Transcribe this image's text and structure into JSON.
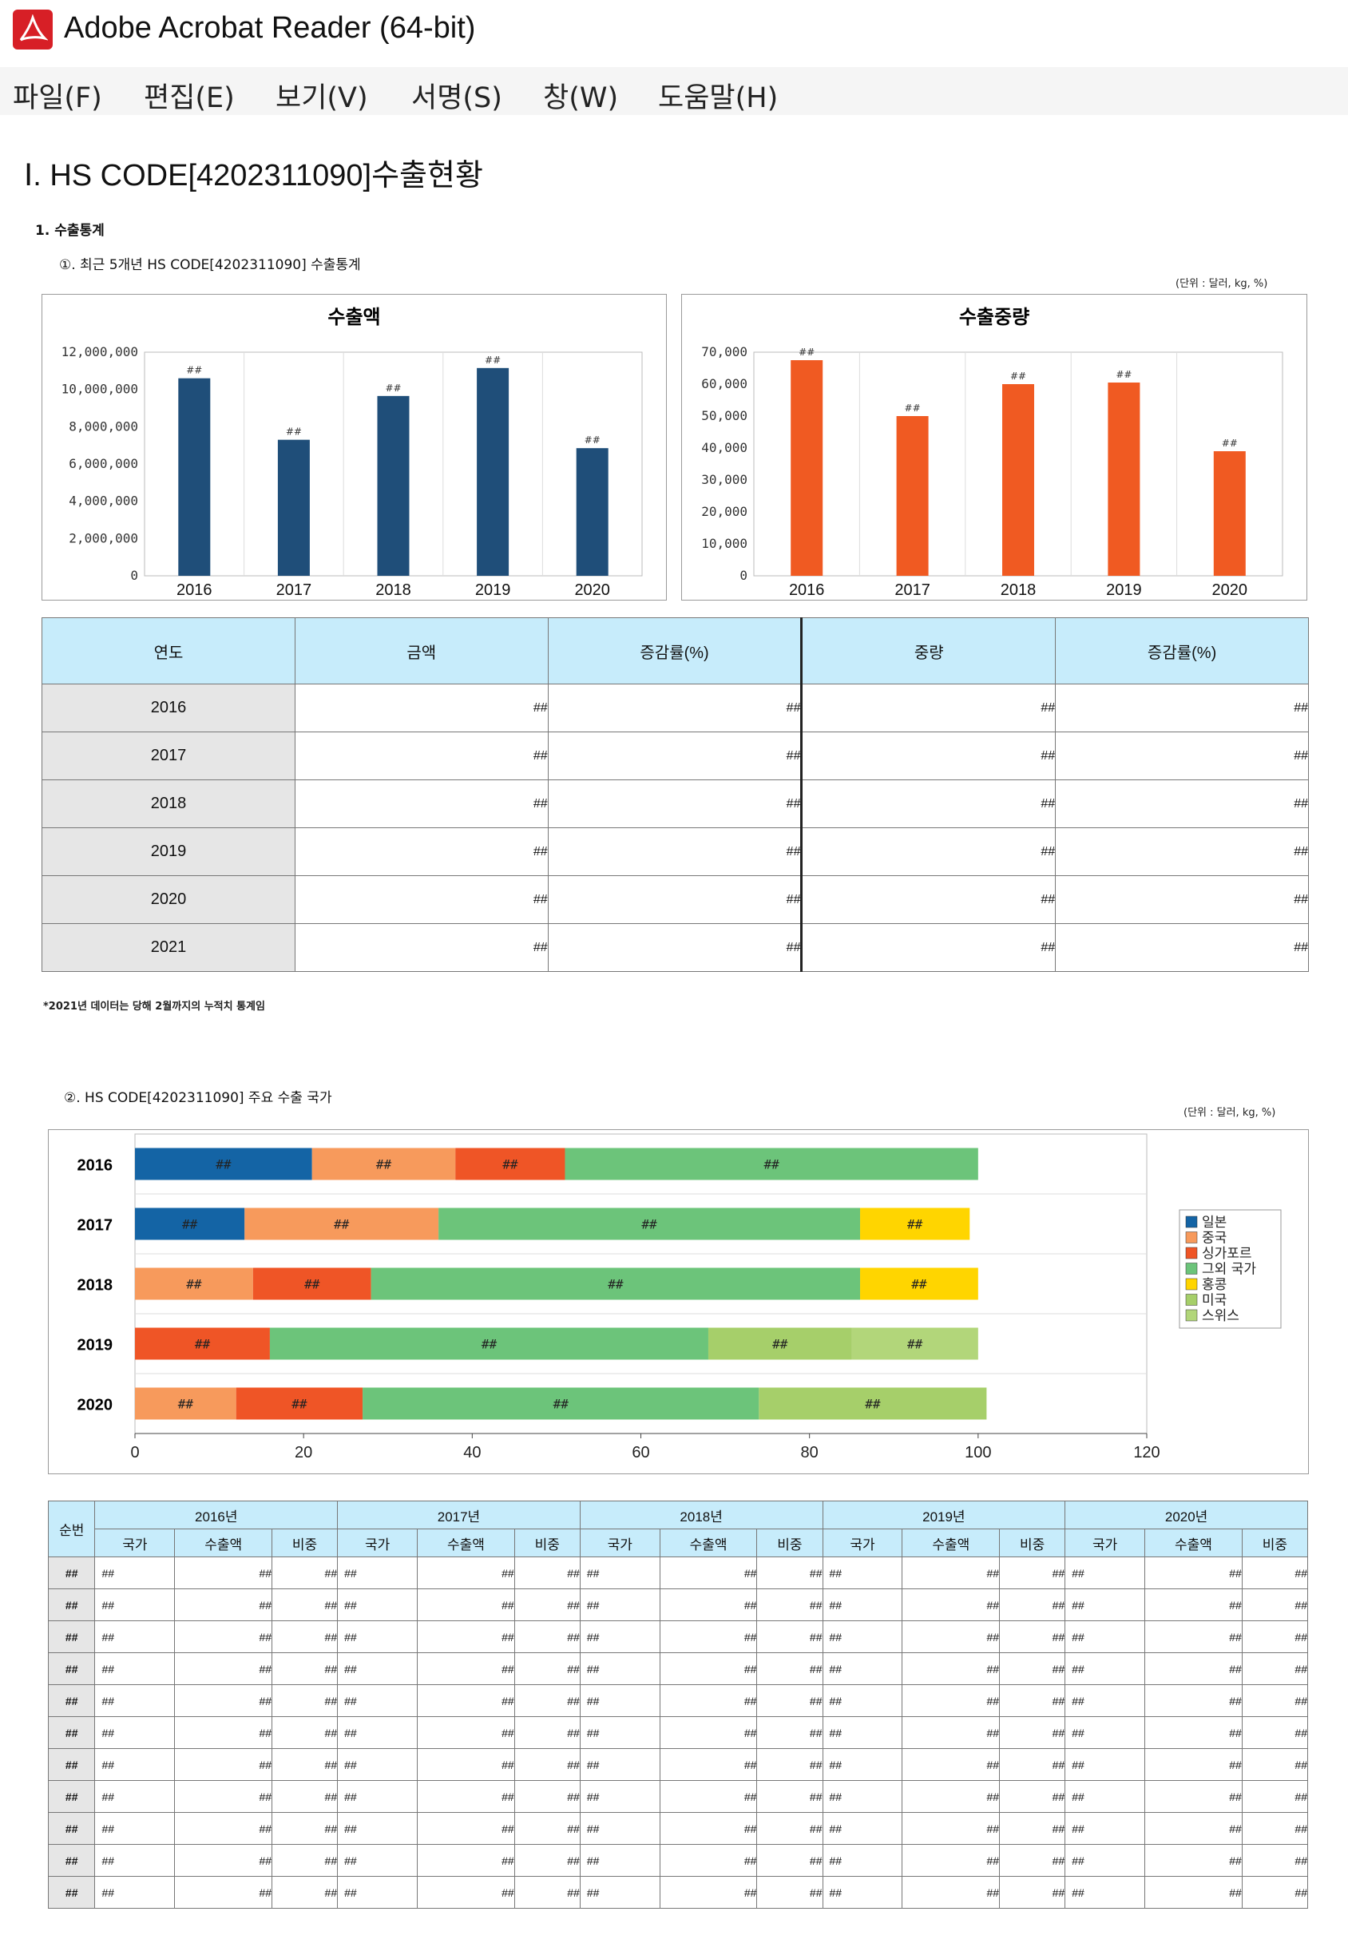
{
  "window": {
    "title": "Adobe Acrobat Reader (64-bit)"
  },
  "menu": [
    "파일(F)",
    "편집(E)",
    "보기(V)",
    "서명(S)",
    "창(W)",
    "도움말(H)"
  ],
  "doc": {
    "heading": "Ⅰ. HS CODE[4202311090]수출현황",
    "section1": "1. 수출통계",
    "sub1": "①. 최근 5개년 HS CODE[4202311090] 수출통계",
    "unit": "(단위 : 달러, kg, %)",
    "note": "*2021년 데이터는 당해 2월까지의 누적치 통계임",
    "sub2": "②. HS CODE[4202311090] 주요 수출 국가",
    "table1": {
      "headers": [
        "연도",
        "금액",
        "증감률(%)",
        "중량",
        "증감률(%)"
      ],
      "rows": [
        {
          "year": "2016",
          "v": [
            "##",
            "##",
            "##",
            "##"
          ]
        },
        {
          "year": "2017",
          "v": [
            "##",
            "##",
            "##",
            "##"
          ]
        },
        {
          "year": "2018",
          "v": [
            "##",
            "##",
            "##",
            "##"
          ]
        },
        {
          "year": "2019",
          "v": [
            "##",
            "##",
            "##",
            "##"
          ]
        },
        {
          "year": "2020",
          "v": [
            "##",
            "##",
            "##",
            "##"
          ]
        },
        {
          "year": "2021",
          "v": [
            "##",
            "##",
            "##",
            "##"
          ]
        }
      ]
    },
    "table2": {
      "rank_header": "순번",
      "years": [
        "2016년",
        "2017년",
        "2018년",
        "2019년",
        "2020년"
      ],
      "subheaders": [
        "국가",
        "수출액",
        "비중"
      ],
      "cell": "##",
      "row_count": 11
    }
  },
  "chart_data": [
    {
      "type": "bar",
      "title": "수출액",
      "categories": [
        "2016",
        "2017",
        "2018",
        "2019",
        "2020"
      ],
      "values": [
        10600000,
        7300000,
        9650000,
        11150000,
        6850000
      ],
      "data_labels": [
        "##",
        "##",
        "##",
        "##",
        "##"
      ],
      "ylim": [
        0,
        12000000
      ],
      "yticks": [
        "12,000,000",
        "10,000,000",
        "8,000,000",
        "6,000,000",
        "4,000,000",
        "2,000,000",
        "0"
      ],
      "color": "#1f4e79",
      "grid": true
    },
    {
      "type": "bar",
      "title": "수출중량",
      "categories": [
        "2016",
        "2017",
        "2018",
        "2019",
        "2020"
      ],
      "values": [
        67500,
        50000,
        60000,
        60500,
        39000
      ],
      "data_labels": [
        "##",
        "##",
        "##",
        "##",
        "##"
      ],
      "ylim": [
        0,
        70000
      ],
      "yticks": [
        "70,000",
        "60,000",
        "50,000",
        "40,000",
        "30,000",
        "20,000",
        "10,000",
        "0"
      ],
      "color": "#f05a22",
      "grid": true
    },
    {
      "type": "bar",
      "orientation": "horizontal",
      "stacked": true,
      "categories": [
        "2016",
        "2017",
        "2018",
        "2019",
        "2020"
      ],
      "xlim": [
        0,
        120
      ],
      "xticks": [
        "0",
        "20",
        "40",
        "60",
        "80",
        "100",
        "120"
      ],
      "legend_position": "right",
      "series": [
        {
          "name": "일본",
          "color": "#1464a5"
        },
        {
          "name": "중국",
          "color": "#f79a5c"
        },
        {
          "name": "싱가포르",
          "color": "#ef5526"
        },
        {
          "name": "그외 국가",
          "color": "#6cc47a"
        },
        {
          "name": "홍콩",
          "color": "#ffd500"
        },
        {
          "name": "미국",
          "color": "#a6cf6a"
        },
        {
          "name": "스위스",
          "color": "#b2d67a"
        }
      ],
      "bars": [
        {
          "year": "2016",
          "segments": [
            {
              "series": "일본",
              "value": 21
            },
            {
              "series": "중국",
              "value": 17
            },
            {
              "series": "싱가포르",
              "value": 13
            },
            {
              "series": "그외 국가",
              "value": 49
            }
          ]
        },
        {
          "year": "2017",
          "segments": [
            {
              "series": "일본",
              "value": 13
            },
            {
              "series": "중국",
              "value": 23
            },
            {
              "series": "그외 국가",
              "value": 50
            },
            {
              "series": "홍콩",
              "value": 13
            }
          ]
        },
        {
          "year": "2018",
          "segments": [
            {
              "series": "중국",
              "value": 14
            },
            {
              "series": "싱가포르",
              "value": 14
            },
            {
              "series": "그외 국가",
              "value": 58
            },
            {
              "series": "홍콩",
              "value": 14
            }
          ]
        },
        {
          "year": "2019",
          "segments": [
            {
              "series": "싱가포르",
              "value": 16
            },
            {
              "series": "그외 국가",
              "value": 52
            },
            {
              "series": "미국",
              "value": 17
            },
            {
              "series": "스위스",
              "value": 15
            }
          ]
        },
        {
          "year": "2020",
          "segments": [
            {
              "series": "중국",
              "value": 12
            },
            {
              "series": "싱가포르",
              "value": 15
            },
            {
              "series": "그외 국가",
              "value": 47
            },
            {
              "series": "미국",
              "value": 27
            }
          ]
        }
      ],
      "data_label": "##"
    }
  ]
}
